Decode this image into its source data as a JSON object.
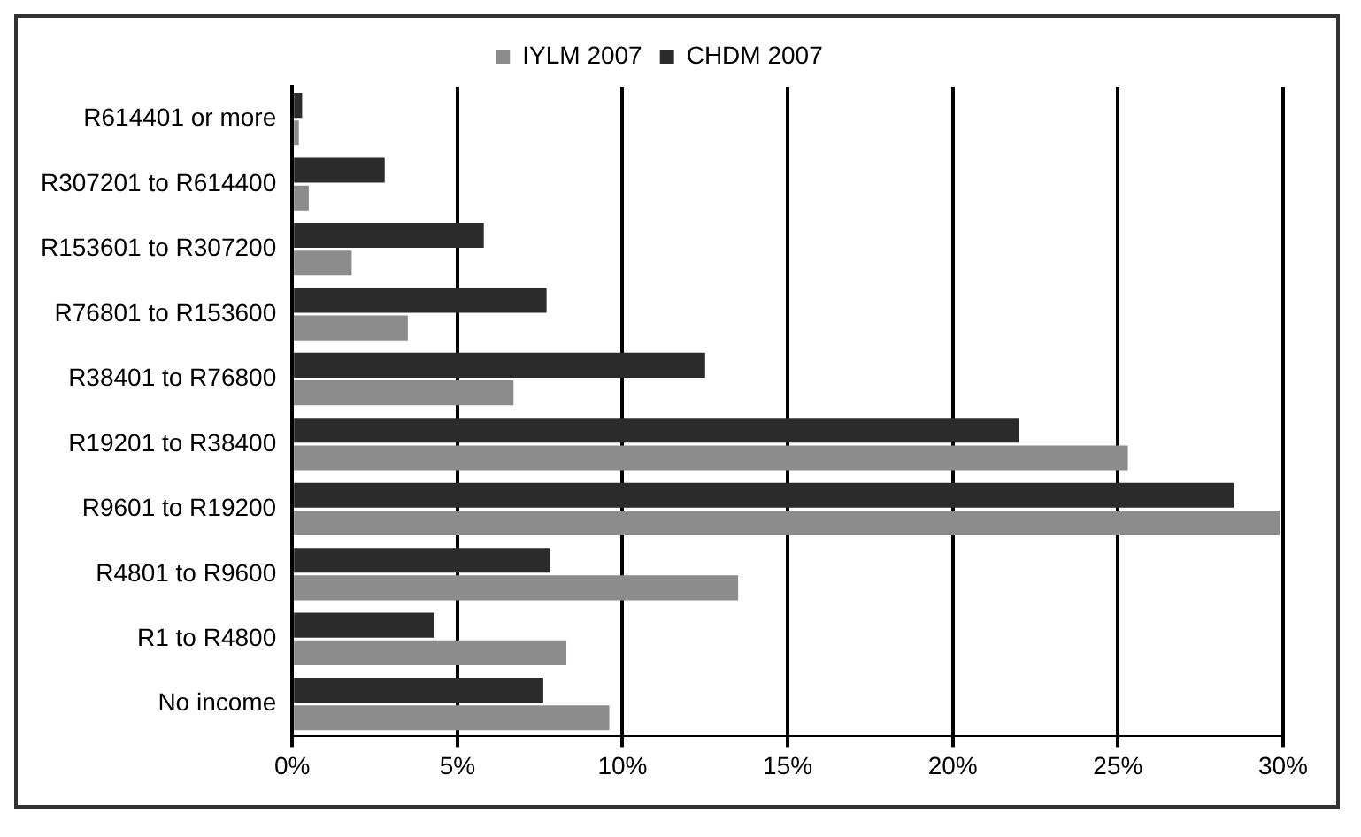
{
  "chart_data": {
    "type": "bar",
    "orientation": "horizontal",
    "categories": [
      "R614401 or more",
      "R307201 to R614400",
      "R153601 to R307200",
      "R76801 to R153600",
      "R38401 to R76800",
      "R19201 to R38400",
      "R9601 to R19200",
      "R4801 to R9600",
      "R1 to R4800",
      "No income"
    ],
    "series": [
      {
        "name": "IYLM 2007",
        "color": "#8c8c8c",
        "values": [
          0.2,
          0.5,
          1.8,
          3.5,
          6.7,
          25.3,
          29.9,
          13.5,
          8.3,
          9.6
        ]
      },
      {
        "name": "CHDM 2007",
        "color": "#2b2b2b",
        "values": [
          0.3,
          2.8,
          5.8,
          7.7,
          12.5,
          22.0,
          28.5,
          7.8,
          4.3,
          7.6
        ]
      }
    ],
    "xlim": [
      0,
      30
    ],
    "xticks": [
      {
        "value": 0,
        "label": "0%"
      },
      {
        "value": 5,
        "label": "5%"
      },
      {
        "value": 10,
        "label": "10%"
      },
      {
        "value": 15,
        "label": "15%"
      },
      {
        "value": 20,
        "label": "20%"
      },
      {
        "value": 25,
        "label": "25%"
      },
      {
        "value": 30,
        "label": "30%"
      }
    ],
    "grid": "x",
    "legend": "top"
  }
}
